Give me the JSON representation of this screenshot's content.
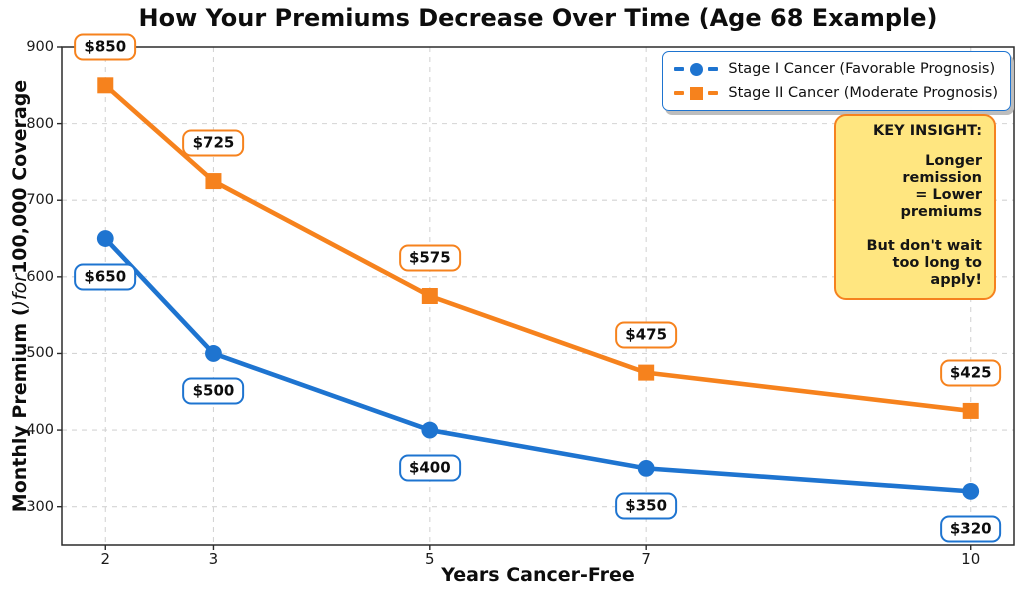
{
  "chart_data": {
    "type": "line",
    "title": "How Your Premiums Decrease Over Time (Age 68 Example)",
    "xlabel": "Years Cancer-Free",
    "ylabel_parts": {
      "pre": "Monthly Premium (",
      "italic": ")for",
      "post": "100,000 Coverage"
    },
    "x": [
      2,
      3,
      5,
      7,
      10
    ],
    "xtick_labels": [
      "2",
      "3",
      "5",
      "7",
      "10"
    ],
    "yticks": [
      300,
      400,
      500,
      600,
      700,
      800,
      900
    ],
    "xlim": [
      1.6,
      10.4
    ],
    "ylim": [
      250,
      900
    ],
    "grid": true,
    "legend_position": "upper right",
    "series": [
      {
        "name": "Stage I Cancer (Favorable Prognosis)",
        "values": [
          650,
          500,
          400,
          350,
          320
        ],
        "point_labels": [
          "$650",
          "$500",
          "$400",
          "$350",
          "$320"
        ],
        "color": "#1e74d0",
        "marker": "circle",
        "label_placement": "below"
      },
      {
        "name": "Stage II Cancer (Moderate Prognosis)",
        "values": [
          850,
          725,
          575,
          475,
          425
        ],
        "point_labels": [
          "$850",
          "$725",
          "$575",
          "$475",
          "$425"
        ],
        "color": "#f6821d",
        "marker": "square",
        "label_placement": "above"
      }
    ],
    "insight": {
      "title": "KEY INSIGHT:",
      "lines": [
        "Longer remission",
        "= Lower premiums",
        "",
        "But don't wait",
        "too long to apply!"
      ],
      "bg_color": "#ffe680",
      "border_color": "#f5821f"
    },
    "colors": {
      "grid": "#d4d4d4",
      "spine": "#2b2b2b",
      "tick_text": "#1a1a1a"
    }
  }
}
